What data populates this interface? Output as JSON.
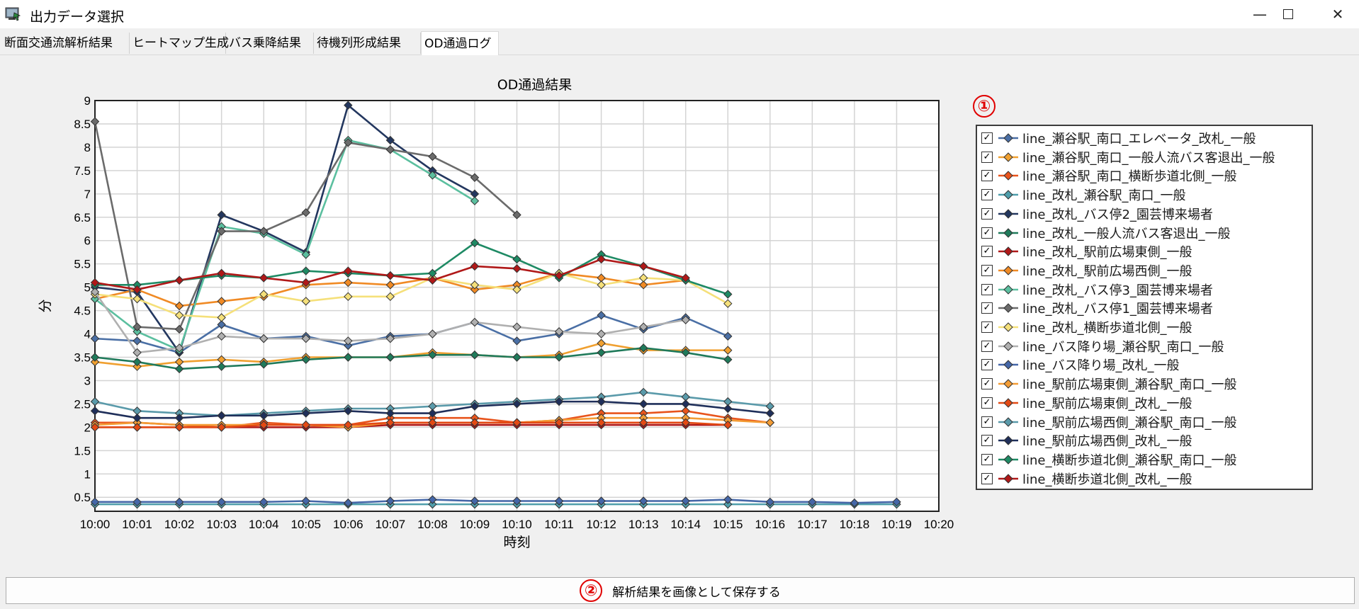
{
  "window": {
    "title": "出力データ選択",
    "min_icon": "minimize-icon",
    "max_icon": "maximize-icon",
    "close_icon": "close-icon"
  },
  "tabs": [
    {
      "label": "断面交通流解析結果",
      "active": false
    },
    {
      "label": "ヒートマップ生成",
      "active": false
    },
    {
      "label": "バス乗降結果",
      "active": false
    },
    {
      "label": "待機列形成結果",
      "active": false
    },
    {
      "label": "OD通過ログ",
      "active": true
    }
  ],
  "badges": {
    "legend": "①",
    "save": "②"
  },
  "save_button": {
    "label": "解析結果を画像として保存する"
  },
  "chart_data": {
    "type": "line",
    "title": "OD通過結果",
    "xlabel": "時刻",
    "ylabel": "分",
    "ylim": [
      0.2,
      9
    ],
    "x_ticks": [
      "10:00",
      "10:01",
      "10:02",
      "10:03",
      "10:04",
      "10:05",
      "10:06",
      "10:07",
      "10:08",
      "10:09",
      "10:10",
      "10:11",
      "10:12",
      "10:13",
      "10:14",
      "10:15",
      "10:16",
      "10:17",
      "10:18",
      "10:19",
      "10:20"
    ],
    "y_ticks": [
      "0.5",
      "1",
      "1.5",
      "2",
      "2.5",
      "3",
      "3.5",
      "4",
      "4.5",
      "5",
      "5.5",
      "6",
      "6.5",
      "7",
      "7.5",
      "8",
      "8.5",
      "9"
    ],
    "grid": true,
    "legend_position": "right",
    "series": [
      {
        "name": "line_瀬谷駅_南口_エレベータ_改札_一般",
        "color": "#4a6fa5",
        "values": [
          3.9,
          3.85,
          3.6,
          4.2,
          3.9,
          3.95,
          3.75,
          3.95,
          4.0,
          4.25,
          3.85,
          4.0,
          4.4,
          4.1,
          4.35,
          3.95
        ]
      },
      {
        "name": "line_瀬谷駅_南口_一般人流バス客退出_一般",
        "color": "#f0a030",
        "values": [
          3.4,
          3.3,
          3.4,
          3.45,
          3.4,
          3.5,
          3.5,
          3.5,
          3.6,
          3.55,
          3.5,
          3.55,
          3.8,
          3.65,
          3.65,
          3.65
        ]
      },
      {
        "name": "line_瀬谷駅_南口_横断歩道北側_一般",
        "color": "#e8541c",
        "values": [
          2.1,
          2.1,
          2.05,
          2.0,
          2.1,
          2.05,
          2.05,
          2.2,
          2.2,
          2.2,
          2.1,
          2.15,
          2.3,
          2.3,
          2.35,
          2.2,
          2.1
        ]
      },
      {
        "name": "line_改札_瀬谷駅_南口_一般",
        "color": "#4f9eab",
        "values": [
          0.35,
          0.35,
          0.35,
          0.35,
          0.35,
          0.35,
          0.35,
          0.35,
          0.35,
          0.35,
          0.35,
          0.35,
          0.35,
          0.35,
          0.35,
          0.35,
          0.35,
          0.35,
          0.35,
          0.35
        ]
      },
      {
        "name": "line_改札_バス停2_園芸博来場者",
        "color": "#23375f",
        "values": [
          5.0,
          4.9,
          3.6,
          6.55,
          6.2,
          5.75,
          8.9,
          8.15,
          7.5,
          7.0
        ]
      },
      {
        "name": "line_改札_一般人流バス客退出_一般",
        "color": "#1f7a5a",
        "values": [
          3.5,
          3.4,
          3.25,
          3.3,
          3.35,
          3.45,
          3.5,
          3.5,
          3.55,
          3.55,
          3.5,
          3.5,
          3.6,
          3.7,
          3.6,
          3.45
        ]
      },
      {
        "name": "line_改札_駅前広場東側_一般",
        "color": "#b01818",
        "values": [
          2.0,
          2.0,
          2.0,
          2.0,
          2.0,
          2.0,
          2.0,
          2.05,
          2.05,
          2.05,
          2.05,
          2.05,
          2.05,
          2.05,
          2.05,
          2.05
        ]
      },
      {
        "name": "line_改札_駅前広場西側_一般",
        "color": "#f08a24",
        "values": [
          4.75,
          4.95,
          4.6,
          4.7,
          4.8,
          5.05,
          5.1,
          5.05,
          5.2,
          4.95,
          5.05,
          5.3,
          5.2,
          5.05,
          5.15
        ]
      },
      {
        "name": "line_改札_バス停3_園芸博来場者",
        "color": "#5bbf9f",
        "values": [
          4.75,
          4.05,
          3.65,
          6.3,
          6.15,
          5.7,
          8.15,
          7.95,
          7.4,
          6.85
        ]
      },
      {
        "name": "line_改札_バス停1_園芸博来場者",
        "color": "#6b6b6b",
        "values": [
          8.55,
          4.15,
          4.1,
          6.2,
          6.2,
          6.6,
          8.1,
          7.95,
          7.8,
          7.35,
          6.55
        ]
      },
      {
        "name": "line_改札_横断歩道北側_一般",
        "color": "#f5e07a",
        "values": [
          4.85,
          4.75,
          4.4,
          4.35,
          4.85,
          4.7,
          4.8,
          4.8,
          5.2,
          5.05,
          4.95,
          5.3,
          5.05,
          5.2,
          5.15,
          4.65
        ]
      },
      {
        "name": "line_バス降り場_瀬谷駅_南口_一般",
        "color": "#b0b0b0",
        "values": [
          4.9,
          3.6,
          3.7,
          3.95,
          3.9,
          3.9,
          3.85,
          3.9,
          4.0,
          4.25,
          4.15,
          4.05,
          4.0,
          4.15,
          4.3
        ]
      },
      {
        "name": "line_バス降り場_改札_一般",
        "color": "#4567a8",
        "values": [
          0.4,
          0.4,
          0.4,
          0.4,
          0.4,
          0.42,
          0.38,
          0.42,
          0.45,
          0.42,
          0.42,
          0.42,
          0.42,
          0.42,
          0.42,
          0.45,
          0.4,
          0.4,
          0.38,
          0.4
        ]
      },
      {
        "name": "line_駅前広場東側_瀬谷駅_南口_一般",
        "color": "#f39c35",
        "values": [
          2.05,
          2.1,
          2.05,
          2.05,
          2.05,
          2.05,
          2.0,
          2.1,
          2.1,
          2.1,
          2.1,
          2.15,
          2.2,
          2.2,
          2.2,
          2.15,
          2.1
        ]
      },
      {
        "name": "line_駅前広場東側_改札_一般",
        "color": "#e34a14",
        "values": [
          2.0,
          2.0,
          2.0,
          2.0,
          2.05,
          2.05,
          2.05,
          2.1,
          2.1,
          2.1,
          2.1,
          2.1,
          2.1,
          2.1,
          2.1,
          2.05
        ]
      },
      {
        "name": "line_駅前広場西側_瀬谷駅_南口_一般",
        "color": "#5a9aaa",
        "values": [
          2.55,
          2.35,
          2.3,
          2.25,
          2.3,
          2.35,
          2.4,
          2.4,
          2.45,
          2.5,
          2.55,
          2.6,
          2.65,
          2.75,
          2.65,
          2.55,
          2.45
        ]
      },
      {
        "name": "line_駅前広場西側_改札_一般",
        "color": "#1f2f5a",
        "values": [
          2.35,
          2.2,
          2.2,
          2.25,
          2.25,
          2.3,
          2.35,
          2.3,
          2.3,
          2.45,
          2.5,
          2.55,
          2.55,
          2.5,
          2.5,
          2.4,
          2.3
        ]
      },
      {
        "name": "line_横断歩道北側_瀬谷駅_南口_一般",
        "color": "#1e8a64",
        "values": [
          5.05,
          5.05,
          5.15,
          5.25,
          5.2,
          5.35,
          5.3,
          5.25,
          5.3,
          5.95,
          5.6,
          5.2,
          5.7,
          5.45,
          5.15,
          4.85
        ]
      },
      {
        "name": "line_横断歩道北側_改札_一般",
        "color": "#b01818",
        "values": [
          5.1,
          4.95,
          5.15,
          5.3,
          5.2,
          5.1,
          5.35,
          5.25,
          5.15,
          5.45,
          5.4,
          5.25,
          5.6,
          5.45,
          5.2
        ]
      }
    ]
  }
}
